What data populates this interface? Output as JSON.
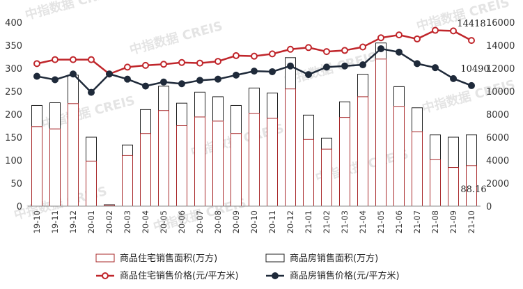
{
  "chart_data": {
    "type": "bar+line",
    "categories": [
      "19-10",
      "19-11",
      "19-12",
      "20-01",
      "20-02",
      "20-03",
      "20-04",
      "20-05",
      "20-06",
      "20-07",
      "20-08",
      "20-09",
      "20-10",
      "20-11",
      "20-12",
      "21-01",
      "21-02",
      "21-03",
      "21-04",
      "21-05",
      "21-06",
      "21-07",
      "21-08",
      "21-09",
      "21-10"
    ],
    "left_axis": {
      "min": 0,
      "max": 400,
      "ticks": [
        0,
        50,
        100,
        150,
        200,
        250,
        300,
        350,
        400
      ]
    },
    "right_axis": {
      "min": 0,
      "max": 16000,
      "ticks": [
        0,
        2000,
        4000,
        6000,
        8000,
        10000,
        12000,
        14000,
        16000
      ]
    },
    "series": [
      {
        "name": "商品住宅销售面积(万方)",
        "kind": "bar",
        "axis": "left",
        "color": "#a8282a",
        "values": [
          173,
          168,
          223,
          98,
          2,
          110,
          158,
          208,
          175,
          194,
          185,
          158,
          202,
          191,
          255,
          145,
          124,
          193,
          238,
          320,
          217,
          162,
          101,
          84,
          88.16
        ]
      },
      {
        "name": "商品房销售面积(万方)",
        "kind": "bar",
        "axis": "left",
        "color": "#222222",
        "values": [
          219,
          225,
          285,
          150,
          3,
          133,
          210,
          261,
          224,
          248,
          238,
          219,
          257,
          246,
          323,
          198,
          148,
          227,
          287,
          355,
          260,
          214,
          155,
          150,
          155
        ]
      },
      {
        "name": "商品住宅销售价格(元/平方米)",
        "kind": "line",
        "axis": "right",
        "color": "#c0262b",
        "values": [
          12400,
          12750,
          12750,
          12750,
          11500,
          12100,
          12250,
          12350,
          12500,
          12450,
          12600,
          13100,
          13050,
          13250,
          13650,
          13800,
          13450,
          13550,
          13850,
          14650,
          14900,
          14550,
          15300,
          15250,
          14418
        ]
      },
      {
        "name": "商品房销售价格(元/平方米)",
        "kind": "line",
        "axis": "right",
        "color": "#1f2a3a",
        "values": [
          11300,
          11000,
          11500,
          9900,
          11500,
          11050,
          10450,
          10800,
          10650,
          10950,
          11050,
          11400,
          11750,
          11700,
          12200,
          11450,
          12100,
          12200,
          12300,
          13700,
          13400,
          12400,
          12050,
          11100,
          10490
        ]
      }
    ],
    "annotations": [
      {
        "text": "14418",
        "series": "商品住宅销售价格(元/平方米)",
        "index": 24
      },
      {
        "text": "10490",
        "series": "商品房销售价格(元/平方米)",
        "index": 24
      },
      {
        "text": "88.16",
        "series": "商品住宅销售面积(万方)",
        "index": 24
      }
    ],
    "legend": [
      "商品住宅销售面积(万方)",
      "商品房销售面积(万方)",
      "商品住宅销售价格(元/平方米)",
      "商品房销售价格(元/平方米)"
    ],
    "legend_placement": "bottom",
    "watermark": "中指数据 CREIS"
  }
}
